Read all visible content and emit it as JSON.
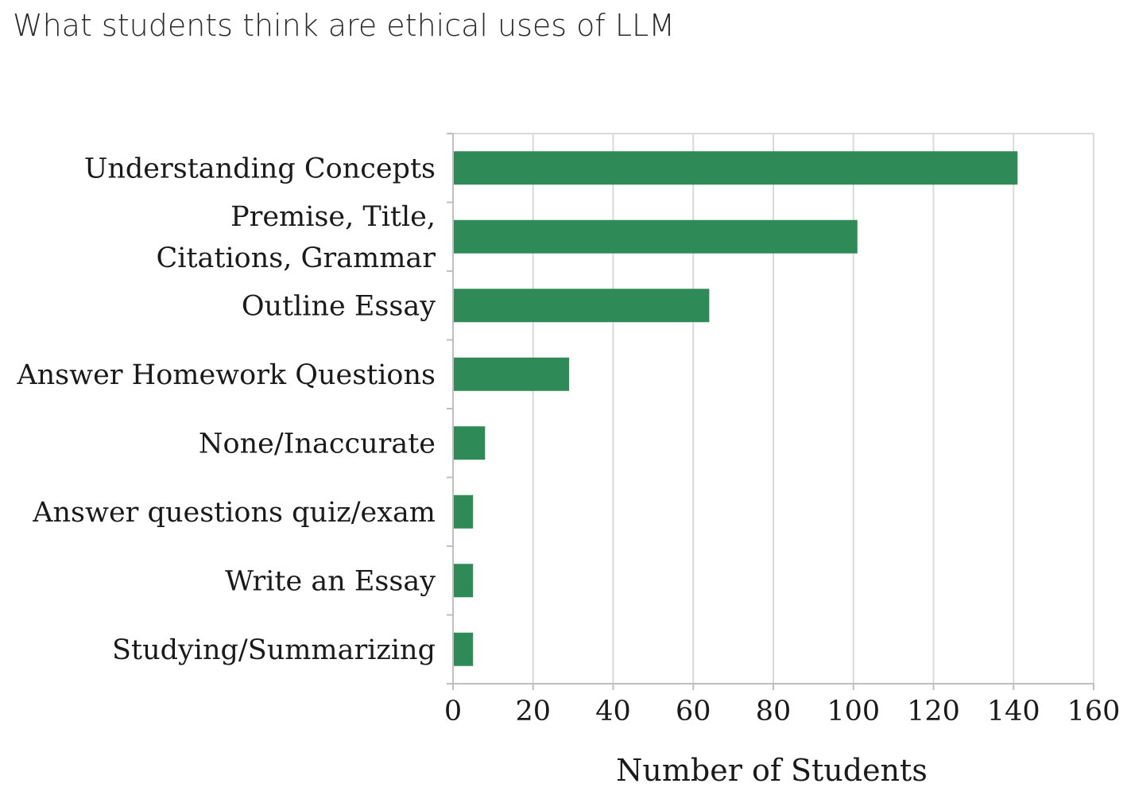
{
  "chart_data": {
    "type": "bar",
    "orientation": "horizontal",
    "title": "What students think are ethical uses of LLM",
    "xlabel": "Number of Students",
    "ylabel": "",
    "categories": [
      [
        "Understanding Concepts"
      ],
      [
        "Premise, Title,",
        "Citations, Grammar"
      ],
      [
        "Outline Essay"
      ],
      [
        "Answer Homework Questions"
      ],
      [
        "None/Inaccurate"
      ],
      [
        "Answer questions quiz/exam"
      ],
      [
        "Write an Essay"
      ],
      [
        "Studying/Summarizing"
      ]
    ],
    "values": [
      141,
      101,
      64,
      29,
      8,
      5,
      5,
      5
    ],
    "xlim": [
      0,
      160
    ],
    "xticks": [
      0,
      20,
      40,
      60,
      80,
      100,
      120,
      140,
      160
    ],
    "grid": "vertical",
    "legend": "none",
    "bar_color": "#2e8b57"
  }
}
